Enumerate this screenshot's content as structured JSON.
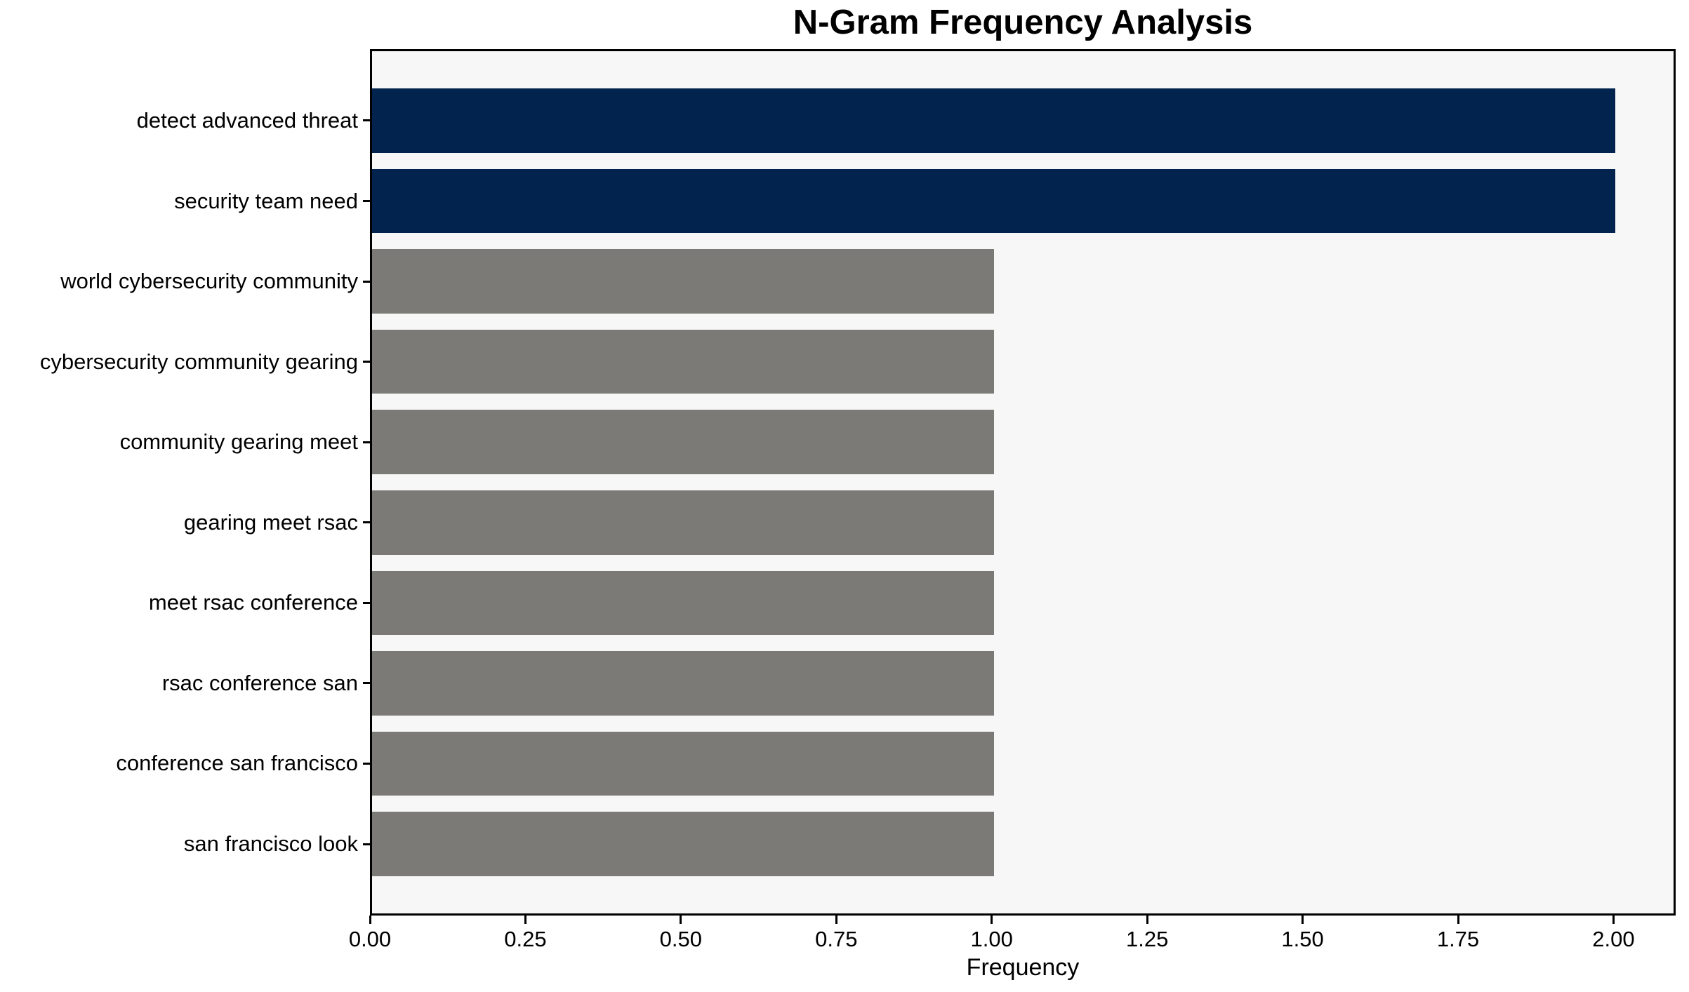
{
  "chart_data": {
    "type": "bar",
    "orientation": "horizontal",
    "title": "N-Gram Frequency Analysis",
    "xlabel": "Frequency",
    "ylabel": "",
    "categories": [
      "detect advanced threat",
      "security team need",
      "world cybersecurity community",
      "cybersecurity community gearing",
      "community gearing meet",
      "gearing meet rsac",
      "meet rsac conference",
      "rsac conference san",
      "conference san francisco",
      "san francisco look"
    ],
    "values": [
      2,
      2,
      1,
      1,
      1,
      1,
      1,
      1,
      1,
      1
    ],
    "bar_color_keys": [
      "highlight",
      "highlight",
      "default",
      "default",
      "default",
      "default",
      "default",
      "default",
      "default",
      "default"
    ],
    "xlim": [
      0,
      2.1
    ],
    "xticks": [
      0,
      0.25,
      0.5,
      0.75,
      1.0,
      1.25,
      1.5,
      1.75,
      2.0
    ],
    "xtick_labels": [
      "0.00",
      "0.25",
      "0.50",
      "0.75",
      "1.00",
      "1.25",
      "1.50",
      "1.75",
      "2.00"
    ],
    "grid": false,
    "legend": null,
    "colors": {
      "highlight": "#02234d",
      "default": "#7b7a77",
      "plot_background": "#f7f7f7",
      "figure_background": "#ffffff",
      "axis": "#000000",
      "text": "#000000"
    }
  }
}
